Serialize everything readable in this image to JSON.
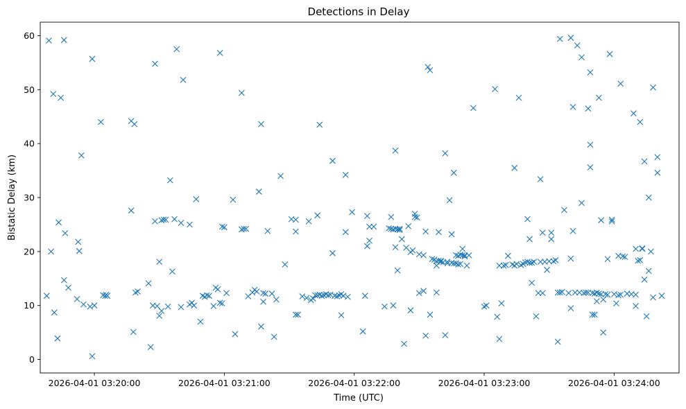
{
  "chart_data": {
    "type": "scatter",
    "title": "Detections in Delay",
    "xlabel": "Time (UTC)",
    "ylabel": "Bistatic Delay (km)",
    "marker": "x",
    "color": "#1f77b4",
    "x_unit": "seconds since 2026-04-01 03:20:00",
    "xlim": [
      -25,
      270
    ],
    "ylim": [
      -2.5,
      62.5
    ],
    "x_ticks": [
      {
        "value": 0,
        "label": "2026-04-01 03:20:00"
      },
      {
        "value": 60,
        "label": "2026-04-01 03:21:00"
      },
      {
        "value": 120,
        "label": "2026-04-01 03:22:00"
      },
      {
        "value": 180,
        "label": "2026-04-01 03:23:00"
      },
      {
        "value": 240,
        "label": "2026-04-01 03:24:00"
      }
    ],
    "y_ticks": [
      {
        "value": 0,
        "label": "0"
      },
      {
        "value": 10,
        "label": "10"
      },
      {
        "value": 20,
        "label": "20"
      },
      {
        "value": 30,
        "label": "30"
      },
      {
        "value": 40,
        "label": "40"
      },
      {
        "value": 50,
        "label": "50"
      },
      {
        "value": 60,
        "label": "60"
      }
    ],
    "grid": false,
    "series": [
      {
        "name": "detections",
        "points": [
          [
            -22,
            11.8
          ],
          [
            -21,
            59.1
          ],
          [
            -20,
            20
          ],
          [
            -19,
            49.2
          ],
          [
            -18.5,
            8.7
          ],
          [
            -17,
            3.9
          ],
          [
            -16.5,
            25.4
          ],
          [
            -15.5,
            48.5
          ],
          [
            -14,
            14.7
          ],
          [
            -14,
            59.2
          ],
          [
            -13.5,
            23.4
          ],
          [
            -12,
            13.3
          ],
          [
            -8,
            11.2
          ],
          [
            -7.5,
            21.8
          ],
          [
            -7,
            20.1
          ],
          [
            -6,
            37.8
          ],
          [
            -5,
            10.2
          ],
          [
            -2,
            9.8
          ],
          [
            -1,
            55.7
          ],
          [
            -1,
            0.6
          ],
          [
            0,
            10
          ],
          [
            3,
            44
          ],
          [
            4,
            11.9
          ],
          [
            5,
            11.8
          ],
          [
            5.5,
            12
          ],
          [
            6,
            11.8
          ],
          [
            17,
            44.2
          ],
          [
            17,
            27.6
          ],
          [
            18,
            5.1
          ],
          [
            18.5,
            43.6
          ],
          [
            19,
            12.4
          ],
          [
            20,
            12.6
          ],
          [
            25,
            14.1
          ],
          [
            26,
            2.3
          ],
          [
            27,
            10
          ],
          [
            28,
            54.8
          ],
          [
            28,
            25.6
          ],
          [
            29,
            9.9
          ],
          [
            30,
            18.1
          ],
          [
            30,
            8.1
          ],
          [
            31,
            9
          ],
          [
            31,
            25.8
          ],
          [
            32,
            25.9
          ],
          [
            33,
            25.9
          ],
          [
            34,
            9.8
          ],
          [
            35,
            33.2
          ],
          [
            36,
            16.3
          ],
          [
            37,
            26
          ],
          [
            38,
            57.5
          ],
          [
            40,
            25.3
          ],
          [
            40,
            9.7
          ],
          [
            41,
            51.8
          ],
          [
            44,
            25
          ],
          [
            44,
            10.2
          ],
          [
            45,
            10.5
          ],
          [
            46,
            10
          ],
          [
            47,
            29.7
          ],
          [
            49,
            7
          ],
          [
            50,
            11.8
          ],
          [
            51,
            11.6
          ],
          [
            52,
            11.9
          ],
          [
            53,
            11.8
          ],
          [
            55,
            9.9
          ],
          [
            56,
            13.3
          ],
          [
            57,
            13
          ],
          [
            58,
            56.8
          ],
          [
            58,
            10.5
          ],
          [
            59,
            10.4
          ],
          [
            59,
            24.6
          ],
          [
            60,
            24.5
          ],
          [
            61,
            12.3
          ],
          [
            64,
            29.6
          ],
          [
            65,
            4.7
          ],
          [
            68,
            49.4
          ],
          [
            68,
            24.1
          ],
          [
            69,
            24.2
          ],
          [
            70,
            24.2
          ],
          [
            71,
            11.7
          ],
          [
            73,
            12.4
          ],
          [
            74,
            12.9
          ],
          [
            75,
            12.6
          ],
          [
            76,
            31.1
          ],
          [
            77,
            6.1
          ],
          [
            77,
            43.6
          ],
          [
            78,
            10.7
          ],
          [
            78,
            12.3
          ],
          [
            79,
            12.2
          ],
          [
            80,
            23.8
          ],
          [
            82,
            12.2
          ],
          [
            83,
            4.2
          ],
          [
            84,
            11.1
          ],
          [
            86,
            34
          ],
          [
            88,
            17.6
          ],
          [
            91,
            26
          ],
          [
            93,
            25.9
          ],
          [
            93,
            23.7
          ],
          [
            93,
            8.3
          ],
          [
            94,
            8.3
          ],
          [
            96,
            11.7
          ],
          [
            98,
            11.4
          ],
          [
            99,
            25.6
          ],
          [
            100,
            11
          ],
          [
            101,
            11.3
          ],
          [
            102,
            11.9
          ],
          [
            103,
            11.9
          ],
          [
            103,
            26.7
          ],
          [
            104,
            12
          ],
          [
            104,
            43.5
          ],
          [
            105,
            11.8
          ],
          [
            106,
            11.9
          ],
          [
            107,
            12.1
          ],
          [
            108,
            11.9
          ],
          [
            109,
            12
          ],
          [
            110,
            19.7
          ],
          [
            110,
            36.8
          ],
          [
            111,
            11.8
          ],
          [
            112,
            11.7
          ],
          [
            113,
            11.9
          ],
          [
            114,
            12.1
          ],
          [
            114,
            8.2
          ],
          [
            115,
            11.8
          ],
          [
            116,
            23.6
          ],
          [
            116,
            34.2
          ],
          [
            117,
            11.6
          ],
          [
            119,
            27.3
          ],
          [
            124,
            5.2
          ],
          [
            125,
            11.8
          ],
          [
            126,
            21
          ],
          [
            126,
            26.6
          ],
          [
            127,
            22
          ],
          [
            127,
            24.6
          ],
          [
            129,
            24.6
          ],
          [
            134,
            9.8
          ],
          [
            136,
            24.3
          ],
          [
            137,
            26.4
          ],
          [
            137,
            24.2
          ],
          [
            138,
            24.1
          ],
          [
            138,
            10
          ],
          [
            139,
            24.2
          ],
          [
            139,
            20.8
          ],
          [
            139,
            38.7
          ],
          [
            140,
            16.5
          ],
          [
            140,
            24.1
          ],
          [
            141,
            24.2
          ],
          [
            141,
            24
          ],
          [
            142,
            22.3
          ],
          [
            143,
            2.9
          ],
          [
            144,
            20.7
          ],
          [
            145,
            24.7
          ],
          [
            146,
            19.9
          ],
          [
            146,
            9.1
          ],
          [
            147,
            20.2
          ],
          [
            148,
            26.4
          ],
          [
            148,
            27
          ],
          [
            149,
            26.3
          ],
          [
            150,
            19.5
          ],
          [
            150,
            12.3
          ],
          [
            152,
            12.7
          ],
          [
            152,
            19.3
          ],
          [
            153,
            4.4
          ],
          [
            153,
            23.7
          ],
          [
            154,
            54.2
          ],
          [
            155,
            8.3
          ],
          [
            155,
            53.6
          ],
          [
            156,
            18.6
          ],
          [
            157,
            18.5
          ],
          [
            158,
            12.4
          ],
          [
            158,
            17.4
          ],
          [
            158,
            18.2
          ],
          [
            159,
            23.6
          ],
          [
            159,
            18.3
          ],
          [
            160,
            18.3
          ],
          [
            160,
            18.1
          ],
          [
            161,
            18
          ],
          [
            162,
            38.2
          ],
          [
            162,
            4.5
          ],
          [
            163,
            18.1
          ],
          [
            163,
            17.8
          ],
          [
            164,
            29.5
          ],
          [
            165,
            23.2
          ],
          [
            165,
            17.9
          ],
          [
            166,
            17.8
          ],
          [
            166,
            34.6
          ],
          [
            167,
            19.3
          ],
          [
            167,
            17.8
          ],
          [
            168,
            19.2
          ],
          [
            168,
            17.6
          ],
          [
            169,
            19.4
          ],
          [
            169,
            17.7
          ],
          [
            170,
            19.3
          ],
          [
            170,
            20.5
          ],
          [
            171,
            19.3
          ],
          [
            171,
            19.1
          ],
          [
            172,
            17.4
          ],
          [
            173,
            19.3
          ],
          [
            175,
            46.6
          ],
          [
            180,
            9.8
          ],
          [
            181,
            10
          ],
          [
            185,
            50.1
          ],
          [
            186,
            7.9
          ],
          [
            187,
            17.4
          ],
          [
            187,
            3.8
          ],
          [
            188,
            10.4
          ],
          [
            189,
            17.4
          ],
          [
            190,
            17.5
          ],
          [
            191,
            19.2
          ],
          [
            193,
            17.6
          ],
          [
            194,
            17.4
          ],
          [
            194,
            35.5
          ],
          [
            195,
            17.7
          ],
          [
            196,
            48.5
          ],
          [
            197,
            17.5
          ],
          [
            198,
            17.7
          ],
          [
            199,
            18
          ],
          [
            200,
            18.1
          ],
          [
            200,
            26
          ],
          [
            201,
            17.9
          ],
          [
            201,
            22.3
          ],
          [
            202,
            14.2
          ],
          [
            202,
            17.9
          ],
          [
            203,
            18.1
          ],
          [
            204,
            8
          ],
          [
            205,
            12.3
          ],
          [
            206,
            33.4
          ],
          [
            206,
            18.1
          ],
          [
            207,
            23.5
          ],
          [
            207,
            12.3
          ],
          [
            208,
            18.1
          ],
          [
            209,
            16.6
          ],
          [
            210,
            18.2
          ],
          [
            211,
            23.5
          ],
          [
            211,
            22.3
          ],
          [
            212,
            18.2
          ],
          [
            213,
            18.4
          ],
          [
            214,
            12.4
          ],
          [
            214,
            3.3
          ],
          [
            215,
            59.4
          ],
          [
            215,
            12.4
          ],
          [
            216,
            12.5
          ],
          [
            217,
            27.7
          ],
          [
            219,
            12.3
          ],
          [
            220,
            59.6
          ],
          [
            220,
            9.5
          ],
          [
            220,
            18.7
          ],
          [
            221,
            46.8
          ],
          [
            221,
            23.8
          ],
          [
            222,
            12.4
          ],
          [
            223,
            58.2
          ],
          [
            224,
            12.4
          ],
          [
            225,
            56
          ],
          [
            225,
            29
          ],
          [
            226,
            12.3
          ],
          [
            227,
            12.4
          ],
          [
            228,
            46.5
          ],
          [
            228,
            12.4
          ],
          [
            229,
            53.2
          ],
          [
            229,
            39.8
          ],
          [
            229,
            35.6
          ],
          [
            230,
            12.3
          ],
          [
            230,
            8.3
          ],
          [
            231,
            12.2
          ],
          [
            231,
            8.3
          ],
          [
            232,
            10.8
          ],
          [
            232,
            12.4
          ],
          [
            233,
            48.5
          ],
          [
            233,
            12.2
          ],
          [
            234,
            12.1
          ],
          [
            234,
            25.8
          ],
          [
            235,
            11.1
          ],
          [
            235,
            5
          ],
          [
            236,
            12.1
          ],
          [
            237,
            12
          ],
          [
            237,
            18.6
          ],
          [
            238,
            56.6
          ],
          [
            239,
            25.9
          ],
          [
            239,
            25.6
          ],
          [
            240,
            12.1
          ],
          [
            241,
            10.4
          ],
          [
            242,
            19.2
          ],
          [
            242,
            11.9
          ],
          [
            243,
            51.1
          ],
          [
            243,
            12
          ],
          [
            244,
            19.1
          ],
          [
            245,
            19
          ],
          [
            246,
            12.2
          ],
          [
            248,
            12.1
          ],
          [
            249,
            45.6
          ],
          [
            250,
            20.5
          ],
          [
            250,
            12
          ],
          [
            250,
            9.9
          ],
          [
            251,
            18.3
          ],
          [
            252,
            44
          ],
          [
            252,
            18.4
          ],
          [
            253,
            20.5
          ],
          [
            253,
            20.6
          ],
          [
            254,
            36.7
          ],
          [
            254,
            14.8
          ],
          [
            255,
            8
          ],
          [
            256,
            30
          ],
          [
            256,
            16.4
          ],
          [
            257,
            20
          ],
          [
            258,
            11.5
          ],
          [
            258,
            50.4
          ],
          [
            260,
            34.6
          ],
          [
            260,
            37.5
          ],
          [
            262,
            11.8
          ]
        ]
      }
    ]
  }
}
